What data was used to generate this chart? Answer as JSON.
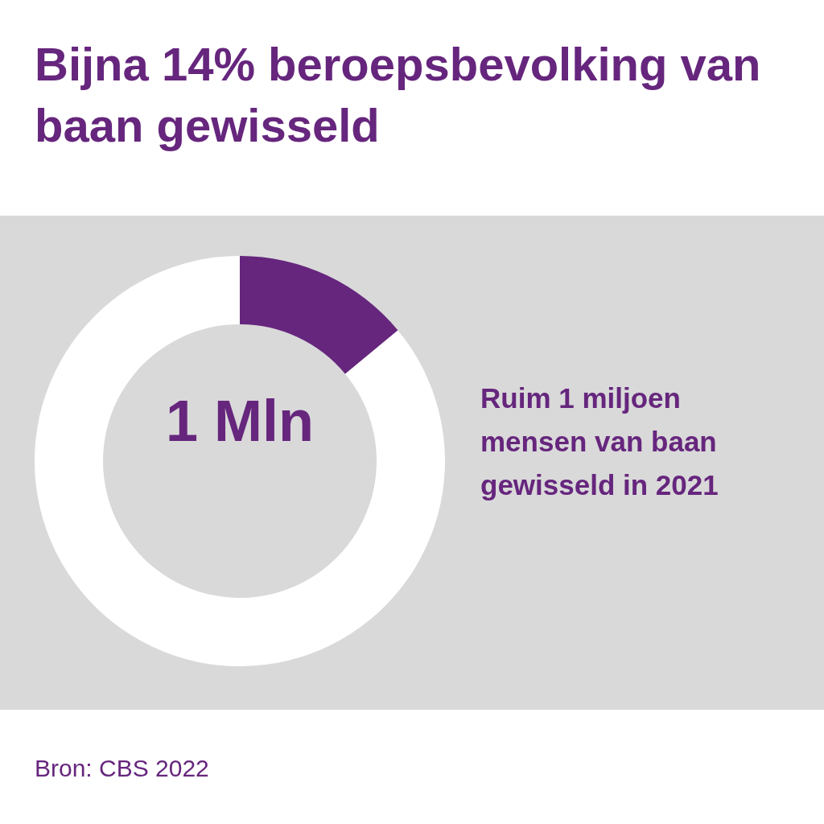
{
  "chart_data": {
    "type": "donut",
    "title": "Bijna 14% beroepsbevolking van baan gewisseld",
    "categories": [
      null,
      null
    ],
    "values": [
      14,
      86
    ],
    "colors": [
      "#66267d",
      "#ffffff"
    ],
    "annotations": [
      "1 Mln",
      "Ruim 1 miljoen mensen van baan gewisseld in 2021",
      "Bron: CBS 2022"
    ]
  }
}
